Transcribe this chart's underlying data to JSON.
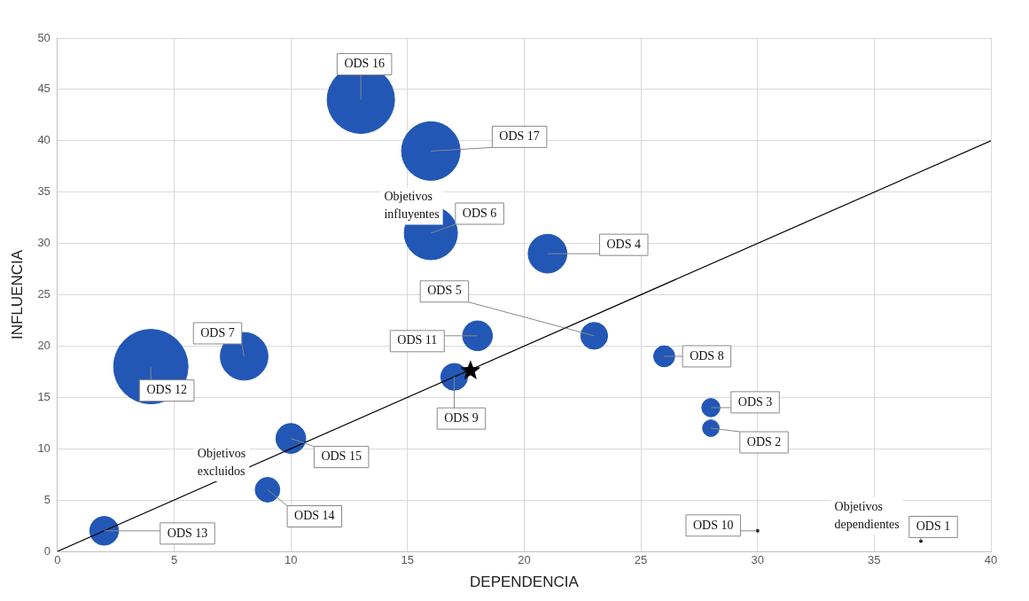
{
  "chart_data": {
    "type": "bubble",
    "xlabel": "DEPENDENCIA",
    "ylabel": "INFLUENCIA",
    "xlim": [
      0,
      40
    ],
    "xticks": [
      0,
      5,
      10,
      15,
      20,
      25,
      30,
      35,
      40
    ],
    "ylim": [
      0,
      50
    ],
    "yticks": [
      0,
      5,
      10,
      15,
      20,
      25,
      30,
      35,
      40,
      45,
      50
    ],
    "grid": true,
    "annotations": [
      "Objetivos influyentes",
      "Objetivos excluidos",
      "Objetivos dependientes"
    ],
    "series": [
      {
        "type": "line",
        "color": "#000000",
        "x": [
          0,
          40
        ],
        "values": [
          0,
          40
        ],
        "marker": "none",
        "line_style": "solid"
      },
      {
        "name": "ODS 16",
        "color": "#2257b5",
        "x": [
          13
        ],
        "values": [
          44
        ],
        "sizes": [
          0.82
        ]
      },
      {
        "name": "ODS 17",
        "color": "#2257b5",
        "x": [
          16
        ],
        "values": [
          39
        ],
        "sizes": [
          0.62
        ]
      },
      {
        "name": "ODS 6",
        "color": "#2257b5",
        "x": [
          16
        ],
        "values": [
          31
        ],
        "sizes": [
          0.51
        ]
      },
      {
        "name": "ODS 4",
        "color": "#2257b5",
        "x": [
          21
        ],
        "values": [
          29
        ],
        "sizes": [
          0.27
        ]
      },
      {
        "name": "ODS 12",
        "color": "#2257b5",
        "x": [
          4
        ],
        "values": [
          18
        ],
        "sizes": [
          1
        ]
      },
      {
        "name": "ODS 7",
        "color": "#2257b5",
        "x": [
          8
        ],
        "values": [
          19
        ],
        "sizes": [
          0.41
        ]
      },
      {
        "name": "ODS 11",
        "color": "#2257b5",
        "x": [
          18
        ],
        "values": [
          21
        ],
        "sizes": [
          0.16
        ]
      },
      {
        "name": "ODS 5",
        "color": "#2257b5",
        "x": [
          23
        ],
        "values": [
          21
        ],
        "sizes": [
          0.13
        ]
      },
      {
        "name": "ODS 9",
        "color": "#2257b5",
        "x": [
          17
        ],
        "values": [
          17
        ],
        "sizes": [
          0.13
        ]
      },
      {
        "name": "ODS 8",
        "color": "#2257b5",
        "x": [
          26
        ],
        "values": [
          19
        ],
        "sizes": [
          0.08
        ]
      },
      {
        "name": "ODS 3",
        "color": "#2257b5",
        "x": [
          28
        ],
        "values": [
          14
        ],
        "sizes": [
          0.06
        ]
      },
      {
        "name": "ODS 2",
        "color": "#2257b5",
        "x": [
          28
        ],
        "values": [
          12
        ],
        "sizes": [
          0.05
        ]
      },
      {
        "name": "ODS 15",
        "color": "#2257b5",
        "x": [
          10
        ],
        "values": [
          11
        ],
        "sizes": [
          0.16
        ]
      },
      {
        "name": "ODS 14",
        "color": "#2257b5",
        "x": [
          9
        ],
        "values": [
          6
        ],
        "sizes": [
          0.11
        ]
      },
      {
        "name": "ODS 13",
        "color": "#2257b5",
        "x": [
          2
        ],
        "values": [
          2
        ],
        "sizes": [
          0.15
        ]
      },
      {
        "name": "ODS 10",
        "color": "#000000",
        "x": [
          30
        ],
        "values": [
          2
        ],
        "sizes": [
          0.001
        ]
      },
      {
        "name": "ODS 1",
        "color": "#000000",
        "x": [
          37
        ],
        "values": [
          1
        ],
        "sizes": [
          0.001
        ]
      },
      {
        "type": "scatter",
        "color": "#000000",
        "x": [
          17.7
        ],
        "values": [
          17.6
        ],
        "marker": "star"
      }
    ]
  }
}
